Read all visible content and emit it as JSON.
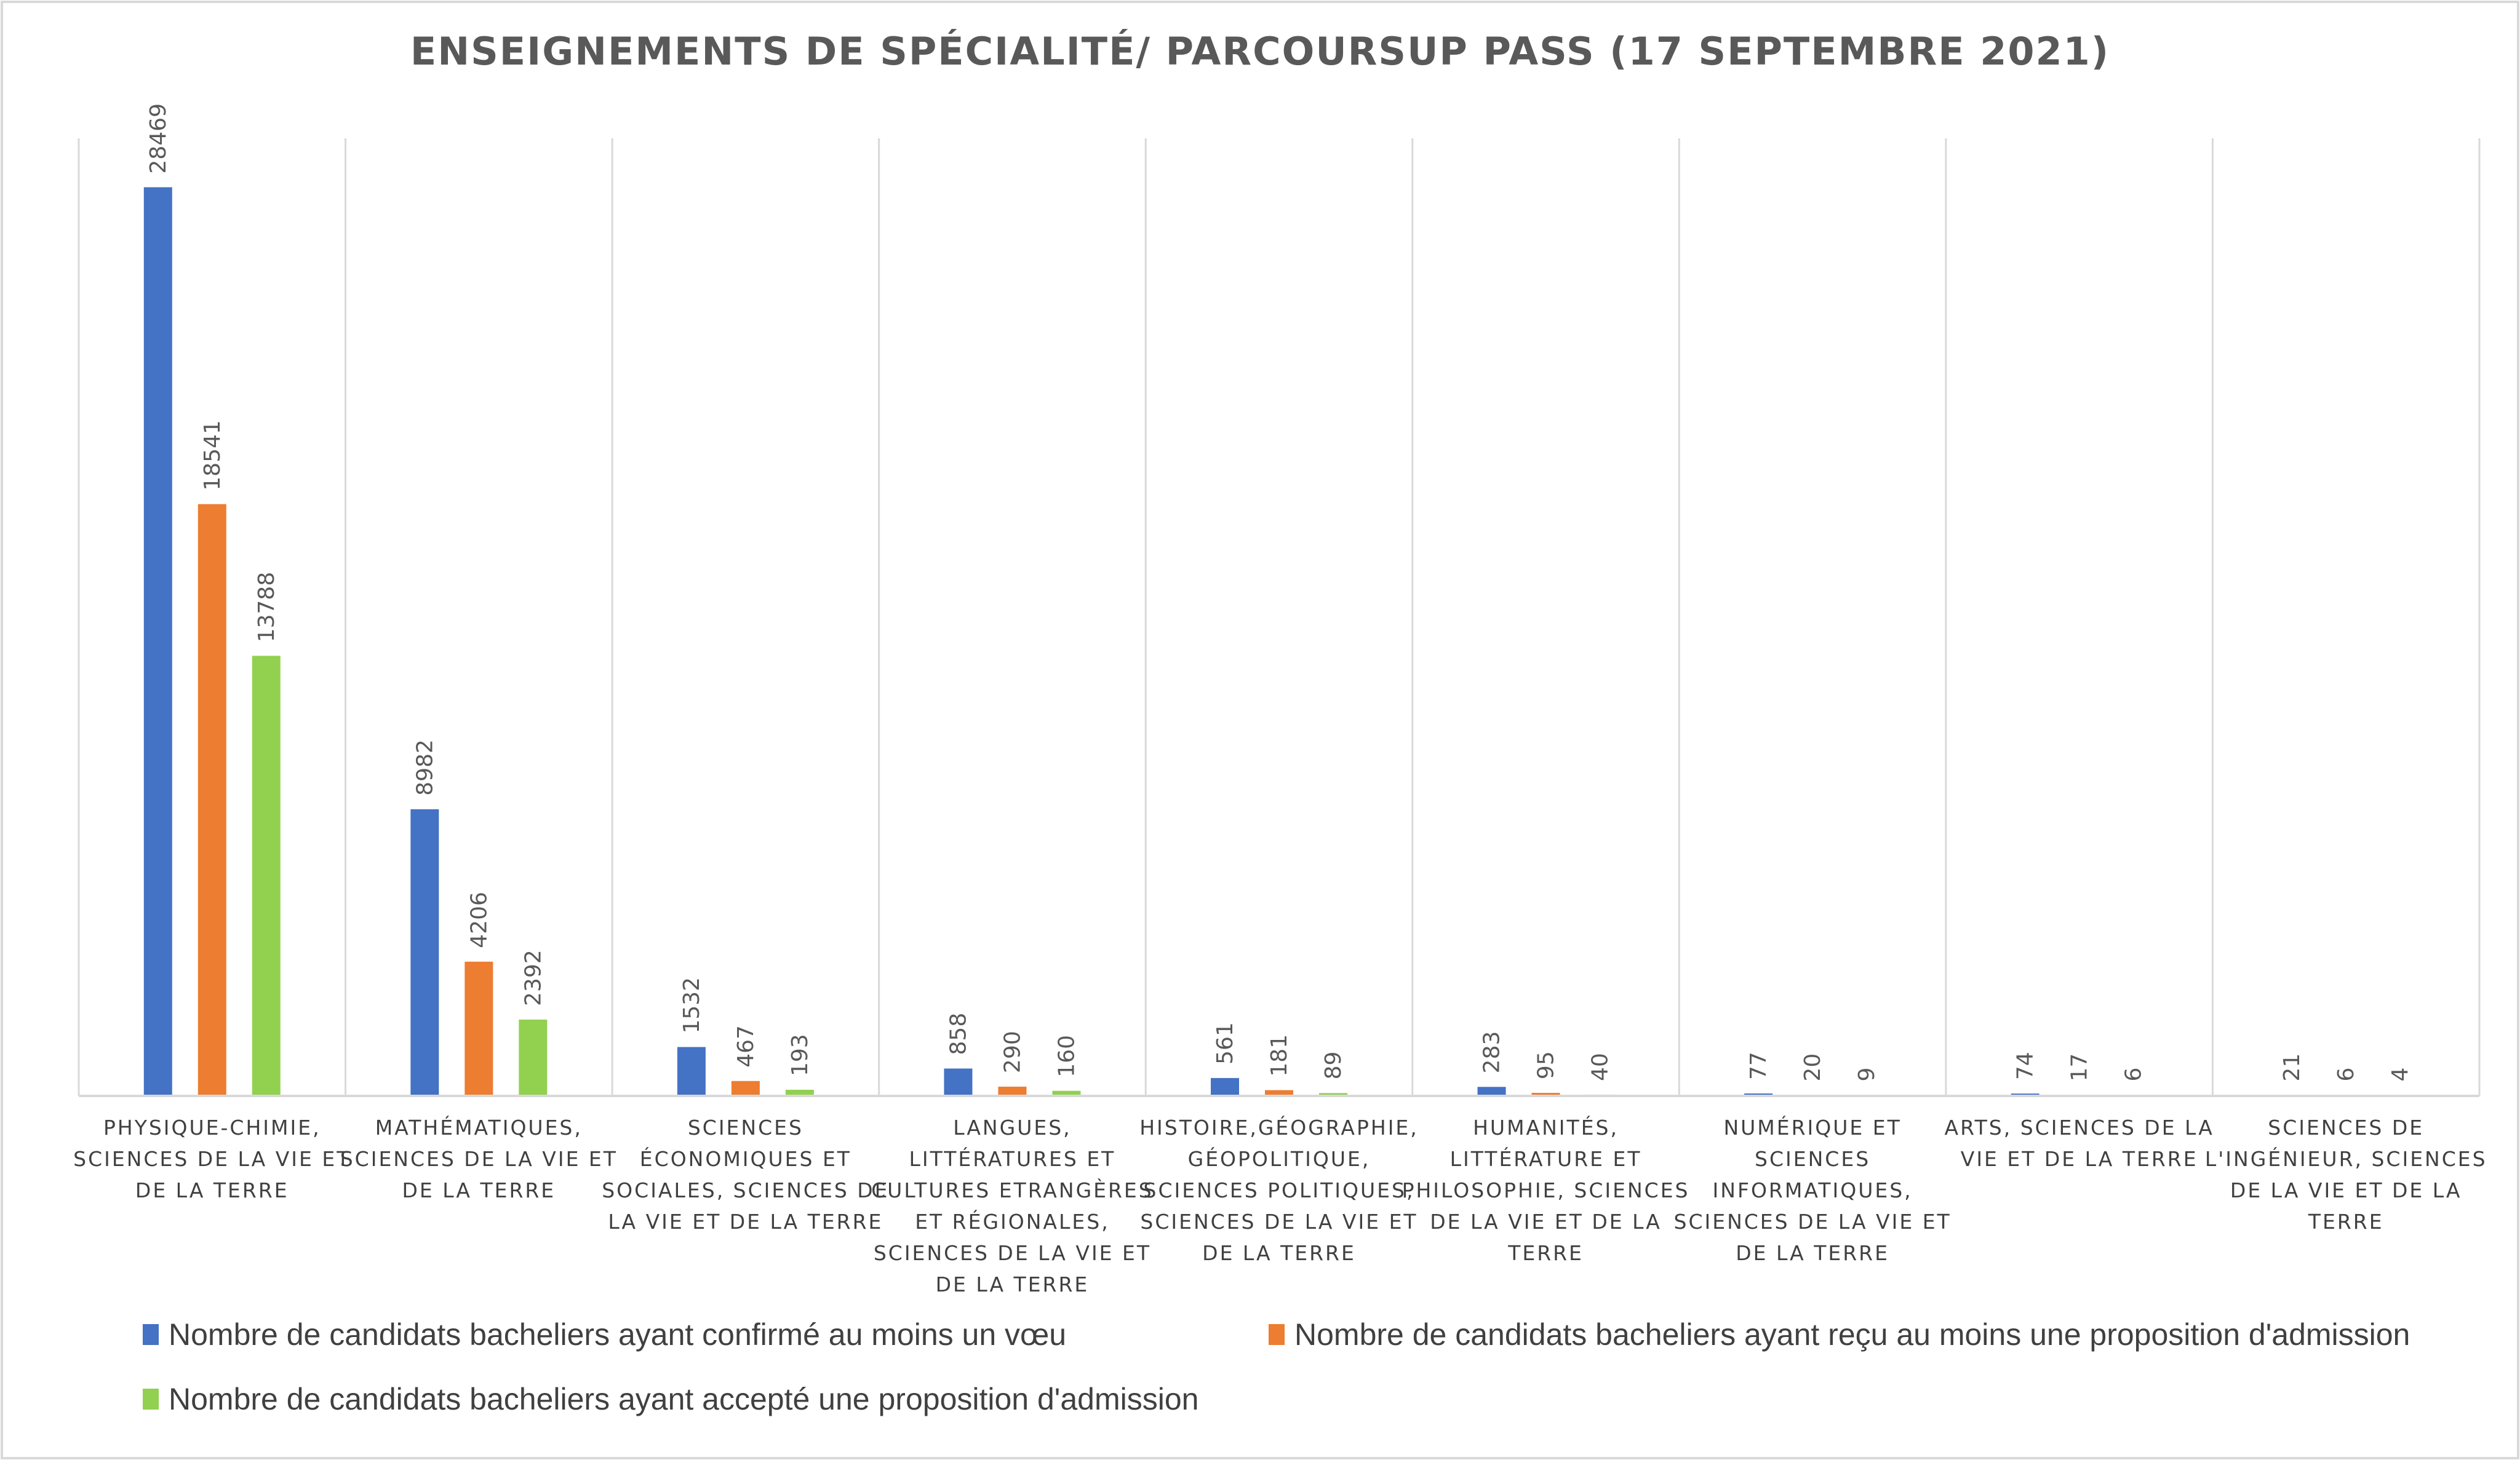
{
  "chart_data": {
    "type": "bar",
    "title": "ENSEIGNEMENTS DE SPÉCIALITÉ/ PARCOURSUP PASS (17 SEPTEMBRE 2021)",
    "xlabel": "",
    "ylabel": "",
    "ylim": [
      0,
      30000
    ],
    "grid": "vertical separators only",
    "legend_position": "bottom",
    "categories": [
      [
        "PHYSIQUE-CHIMIE,",
        "SCIENCES DE LA VIE ET",
        "DE LA TERRE"
      ],
      [
        "MATHÉMATIQUES,",
        "SCIENCES DE LA VIE ET",
        "DE LA TERRE"
      ],
      [
        "SCIENCES",
        "ÉCONOMIQUES ET",
        "SOCIALES, SCIENCES DE",
        "LA VIE ET DE LA TERRE"
      ],
      [
        "LANGUES,",
        "LITTÉRATURES ET",
        "CULTURES ETRANGÈRES",
        "ET RÉGIONALES,",
        "SCIENCES DE LA VIE ET",
        "DE LA TERRE"
      ],
      [
        "HISTOIRE,GÉOGRAPHIE,",
        "GÉOPOLITIQUE,",
        "SCIENCES POLITIQUES,",
        "SCIENCES DE LA VIE ET",
        "DE LA TERRE"
      ],
      [
        "HUMANITÉS,",
        "LITTÉRATURE ET",
        "PHILOSOPHIE, SCIENCES",
        "DE LA VIE ET DE LA",
        "TERRE"
      ],
      [
        "NUMÉRIQUE ET",
        "SCIENCES",
        "INFORMATIQUES,",
        "SCIENCES DE LA VIE ET",
        "DE LA TERRE"
      ],
      [
        "ARTS, SCIENCES DE LA",
        "VIE ET DE LA TERRE"
      ],
      [
        "SCIENCES DE",
        "L'INGÉNIEUR, SCIENCES",
        "DE LA VIE ET DE LA",
        "TERRE"
      ]
    ],
    "series": [
      {
        "name": "Nombre de candidats bacheliers ayant confirmé au moins un vœu",
        "color": "#4472C4",
        "values": [
          28469,
          8982,
          1532,
          858,
          561,
          283,
          77,
          74,
          21
        ]
      },
      {
        "name": "Nombre de candidats bacheliers ayant reçu au moins une proposition d'admission",
        "color": "#ED7D31",
        "values": [
          18541,
          4206,
          467,
          290,
          181,
          95,
          20,
          17,
          6
        ]
      },
      {
        "name": "Nombre de candidats bacheliers ayant accepté une proposition d'admission",
        "color": "#92D050",
        "values": [
          13788,
          2392,
          193,
          160,
          89,
          40,
          9,
          6,
          4
        ]
      }
    ]
  }
}
